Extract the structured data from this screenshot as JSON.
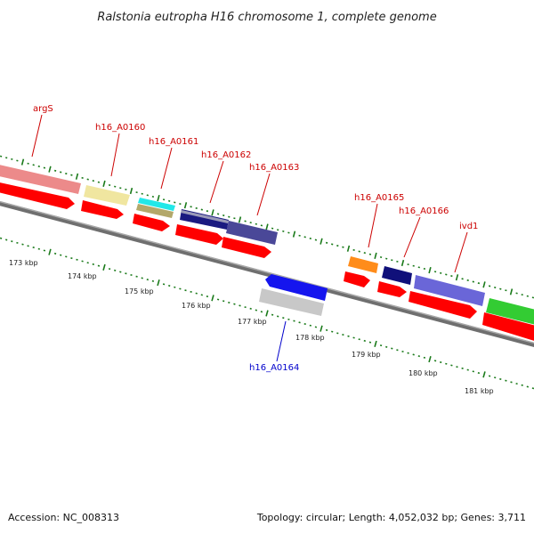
{
  "title": "Ralstonia eutropha H16 chromosome 1, complete genome",
  "footer": {
    "accession": "Accession: NC_008313",
    "summary": "Topology: circular; Length: 4,052,032 bp; Genes: 3,711"
  },
  "ruler": {
    "labels": [
      "173 kbp",
      "174 kbp",
      "175 kbp",
      "176 kbp",
      "177 kbp",
      "178 kbp",
      "179 kbp",
      "180 kbp",
      "181 kbp"
    ]
  },
  "gene_labels": [
    {
      "name": "argS",
      "color": "#cc0000"
    },
    {
      "name": "h16_A0160",
      "color": "#cc0000"
    },
    {
      "name": "h16_A0161",
      "color": "#cc0000"
    },
    {
      "name": "h16_A0162",
      "color": "#cc0000"
    },
    {
      "name": "h16_A0163",
      "color": "#cc0000"
    },
    {
      "name": "h16_A0165",
      "color": "#cc0000"
    },
    {
      "name": "h16_A0166",
      "color": "#cc0000"
    },
    {
      "name": "ivd1",
      "color": "#cc0000"
    },
    {
      "name": "h16_A0164",
      "color": "#0000cc"
    }
  ],
  "colors": {
    "backbone": "#808080",
    "tick": "#1a7a1a",
    "cds_forward": "#ff0000"
  }
}
